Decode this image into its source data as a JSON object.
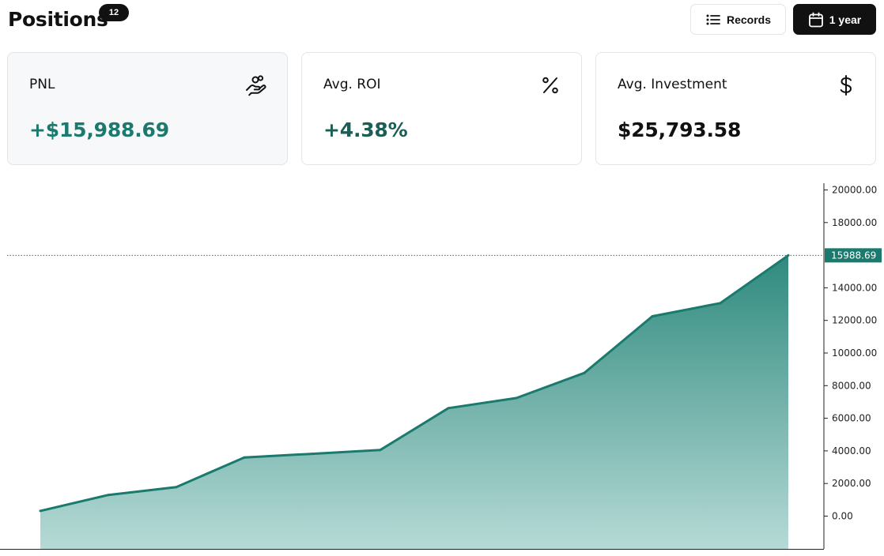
{
  "header": {
    "title": "Positions",
    "count": "12",
    "records_label": "Records",
    "period_label": "1 year"
  },
  "stats": [
    {
      "label": "PNL",
      "value": "+$15,988.69",
      "icon": "hand-coins-icon",
      "value_color": "#1a7a6e"
    },
    {
      "label": "Avg. ROI",
      "value": "+4.38%",
      "icon": "percent-icon",
      "value_color": "#1a5e55"
    },
    {
      "label": "Avg. Investment",
      "value": "$25,793.58",
      "icon": "dollar-sign-icon",
      "value_color": "#111111"
    }
  ],
  "colors": {
    "accent": "#1a7a6e",
    "area_top": "#2f8a7e",
    "area_bottom": "#b6dad6",
    "last_value_badge": "#1a7a6e"
  },
  "chart_data": {
    "type": "area",
    "title": "",
    "xlabel": "",
    "ylabel": "",
    "x": [
      1,
      2,
      3,
      4,
      5,
      6,
      7,
      8,
      9,
      10,
      11,
      12
    ],
    "values": [
      320,
      1300,
      1780,
      3600,
      3820,
      4060,
      6620,
      7240,
      8780,
      12250,
      13060,
      15988.69
    ],
    "ylim": [
      -2000,
      20500
    ],
    "yticks": [
      "20000.00",
      "18000.00",
      "14000.00",
      "12000.00",
      "10000.00",
      "8000.00",
      "6000.00",
      "4000.00",
      "2000.00",
      "0.00"
    ],
    "last_value_label": "15988.69",
    "grid": false,
    "legend": "none"
  }
}
